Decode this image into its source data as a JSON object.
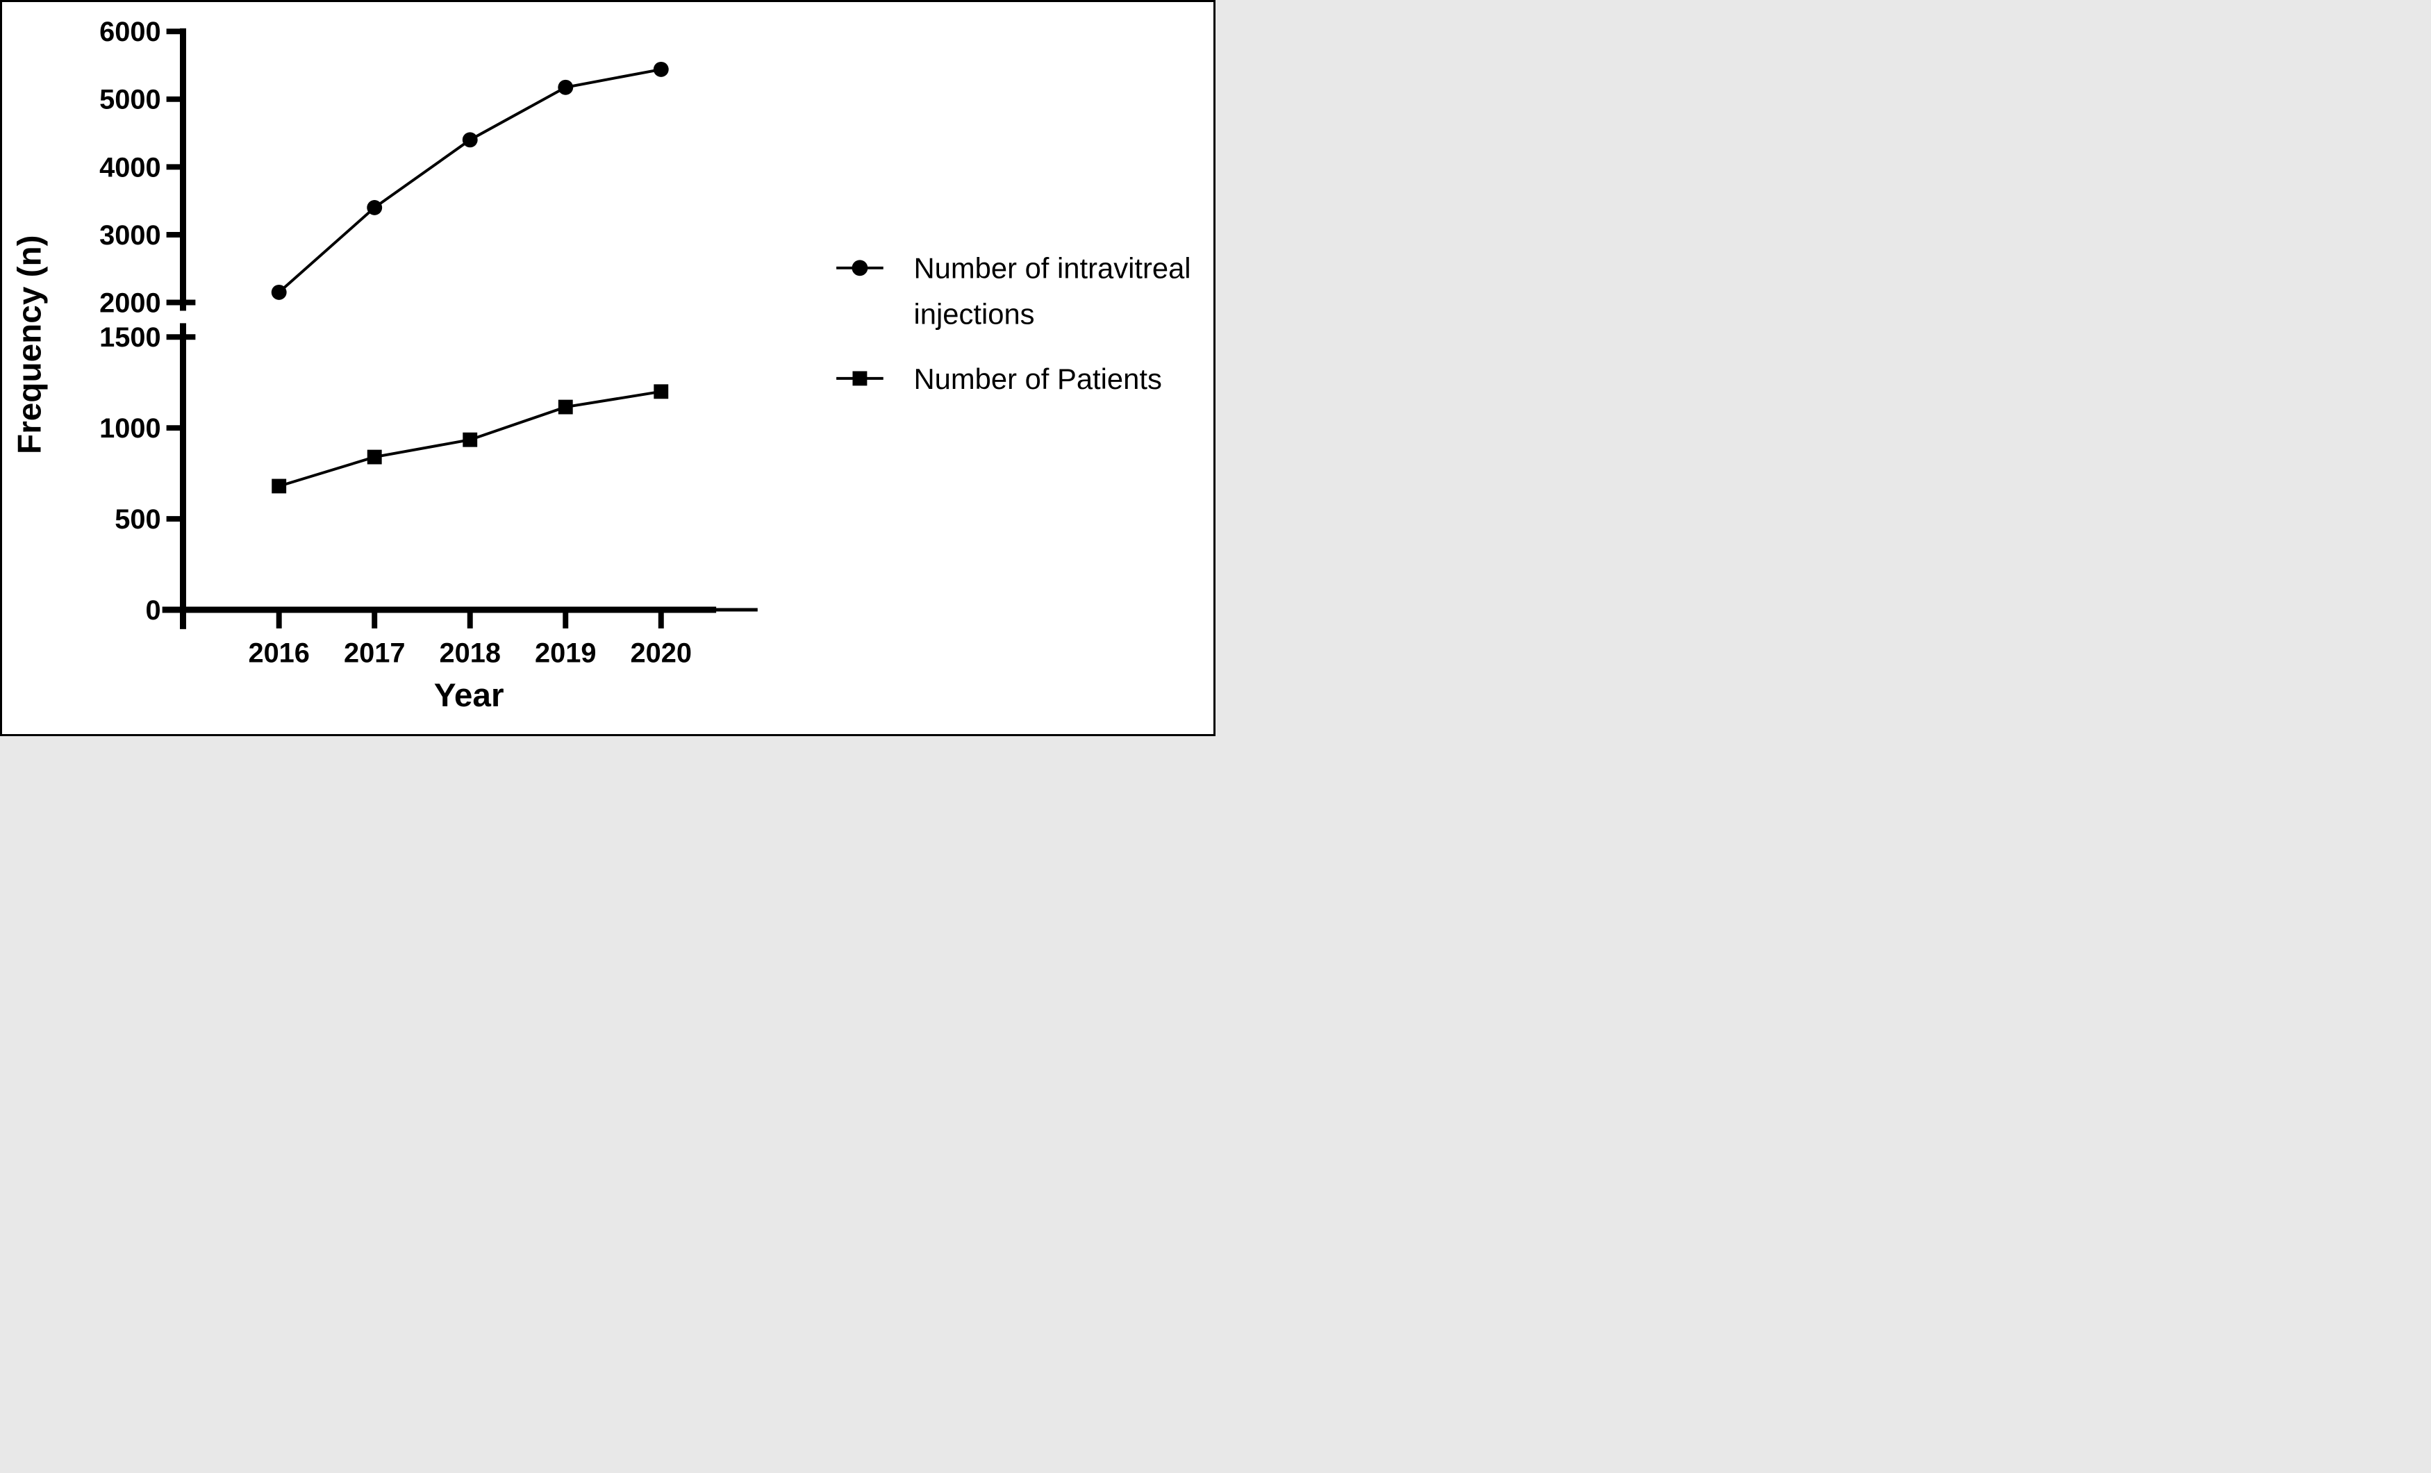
{
  "chart_data": {
    "type": "line",
    "title": "",
    "xlabel": "Year",
    "ylabel": "Frequency (n)",
    "categories": [
      "2016",
      "2017",
      "2018",
      "2019",
      "2020"
    ],
    "series": [
      {
        "name": "Number of intravitreal injections",
        "marker": "circle",
        "axis_segment": "upper",
        "values": [
          2150,
          3400,
          4400,
          5175,
          5440
        ]
      },
      {
        "name": "Number of Patients",
        "marker": "square",
        "axis_segment": "lower",
        "values": [
          680,
          840,
          935,
          1115,
          1200
        ]
      }
    ],
    "y_axis": {
      "break": true,
      "upper_segment": {
        "range": [
          2000,
          6000
        ],
        "ticks": [
          2000,
          3000,
          4000,
          5000,
          6000
        ]
      },
      "lower_segment": {
        "range": [
          0,
          1500
        ],
        "ticks": [
          0,
          500,
          1000,
          1500
        ]
      }
    },
    "grid": false,
    "legend_position": "right",
    "colors": {
      "line": "#000000",
      "marker": "#000000",
      "background": "#ffffff",
      "frame": "#000000"
    }
  },
  "axes": {
    "y_label": "Frequency (n)",
    "x_label": "Year",
    "upper_tick_labels": [
      "2000",
      "3000",
      "4000",
      "5000",
      "6000"
    ],
    "lower_tick_labels": [
      "0",
      "500",
      "1000",
      "1500"
    ],
    "x_tick_labels": [
      "2016",
      "2017",
      "2018",
      "2019",
      "2020"
    ]
  },
  "legend": {
    "items": [
      {
        "marker": "circle",
        "lines": [
          "Number of intravitreal",
          "injections"
        ]
      },
      {
        "marker": "square",
        "lines": [
          "Number of Patients"
        ]
      }
    ]
  }
}
